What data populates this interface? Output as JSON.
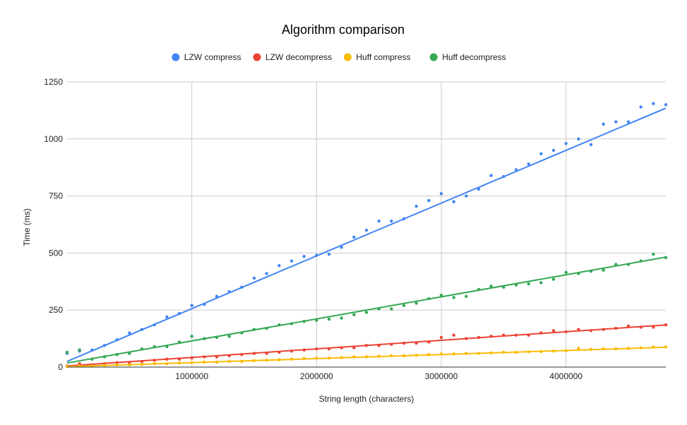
{
  "chart_data": {
    "type": "scatter",
    "title": "Algorithm comparison",
    "xlabel": "String length (characters)",
    "ylabel": "Time (ms)",
    "xlim": [
      0,
      4800000
    ],
    "ylim": [
      0,
      1250
    ],
    "xticks": [
      1000000,
      2000000,
      3000000,
      4000000
    ],
    "xtick_labels": [
      "1000000",
      "2000000",
      "3000000",
      "4000000"
    ],
    "yticks": [
      0,
      250,
      500,
      750,
      1000,
      1250
    ],
    "ytick_labels": [
      "0",
      "250",
      "500",
      "750",
      "1000",
      "1250"
    ],
    "grid": true,
    "legend_position": "top",
    "trendlines": true,
    "series": [
      {
        "name": "LZW compress",
        "color": "#4285F4",
        "x": [
          0,
          100000,
          200000,
          300000,
          400000,
          500000,
          600000,
          700000,
          800000,
          900000,
          1000000,
          1100000,
          1200000,
          1300000,
          1400000,
          1500000,
          1600000,
          1700000,
          1800000,
          1900000,
          2000000,
          2100000,
          2200000,
          2300000,
          2400000,
          2500000,
          2600000,
          2700000,
          2800000,
          2900000,
          3000000,
          3100000,
          3200000,
          3300000,
          3400000,
          3500000,
          3600000,
          3700000,
          3800000,
          3900000,
          4000000,
          4100000,
          4200000,
          4300000,
          4400000,
          4500000,
          4600000,
          4700000,
          4800000
        ],
        "y": [
          60,
          70,
          75,
          95,
          120,
          150,
          165,
          185,
          220,
          235,
          270,
          275,
          310,
          330,
          350,
          390,
          410,
          445,
          465,
          485,
          490,
          495,
          525,
          570,
          600,
          640,
          640,
          650,
          705,
          730,
          760,
          725,
          750,
          780,
          840,
          835,
          865,
          890,
          935,
          950,
          980,
          1000,
          975,
          1065,
          1075,
          1075,
          1140,
          1155,
          1150
        ],
        "trend": [
          25,
          1135
        ]
      },
      {
        "name": "LZW decompress",
        "color": "#EA4335",
        "x": [
          0,
          100000,
          200000,
          300000,
          400000,
          500000,
          600000,
          700000,
          800000,
          900000,
          1000000,
          1100000,
          1200000,
          1300000,
          1400000,
          1500000,
          1600000,
          1700000,
          1800000,
          1900000,
          2000000,
          2100000,
          2200000,
          2300000,
          2400000,
          2500000,
          2600000,
          2700000,
          2800000,
          2900000,
          3000000,
          3100000,
          3200000,
          3300000,
          3400000,
          3500000,
          3600000,
          3700000,
          3800000,
          3900000,
          4000000,
          4100000,
          4200000,
          4300000,
          4400000,
          4500000,
          4600000,
          4700000,
          4800000
        ],
        "y": [
          5,
          15,
          10,
          15,
          20,
          20,
          25,
          30,
          35,
          35,
          40,
          45,
          45,
          50,
          55,
          60,
          60,
          65,
          70,
          75,
          80,
          80,
          85,
          85,
          95,
          95,
          100,
          105,
          105,
          110,
          130,
          140,
          125,
          130,
          135,
          140,
          140,
          140,
          150,
          160,
          155,
          165,
          160,
          165,
          170,
          180,
          175,
          175,
          185
        ],
        "trend": [
          5,
          185
        ]
      },
      {
        "name": "Huff compress",
        "color": "#FBBC04",
        "x": [
          0,
          100000,
          200000,
          300000,
          400000,
          500000,
          600000,
          700000,
          800000,
          900000,
          1000000,
          1100000,
          1200000,
          1300000,
          1400000,
          1500000,
          1600000,
          1700000,
          1800000,
          1900000,
          2000000,
          2100000,
          2200000,
          2300000,
          2400000,
          2500000,
          2600000,
          2700000,
          2800000,
          2900000,
          3000000,
          3100000,
          3200000,
          3300000,
          3400000,
          3500000,
          3600000,
          3700000,
          3800000,
          3900000,
          4000000,
          4100000,
          4200000,
          4300000,
          4400000,
          4500000,
          4600000,
          4700000,
          4800000
        ],
        "y": [
          3,
          5,
          5,
          8,
          10,
          10,
          12,
          15,
          15,
          18,
          20,
          22,
          22,
          25,
          25,
          28,
          30,
          32,
          35,
          38,
          40,
          40,
          42,
          45,
          45,
          48,
          50,
          50,
          52,
          55,
          58,
          58,
          60,
          60,
          62,
          65,
          65,
          68,
          68,
          70,
          72,
          82,
          78,
          80,
          80,
          82,
          85,
          88,
          88
        ],
        "trend": [
          2,
          87
        ]
      },
      {
        "name": "Huff decompress",
        "color": "#34A853",
        "x": [
          0,
          100000,
          200000,
          300000,
          400000,
          500000,
          600000,
          700000,
          800000,
          900000,
          1000000,
          1100000,
          1200000,
          1300000,
          1400000,
          1500000,
          1600000,
          1700000,
          1800000,
          1900000,
          2000000,
          2100000,
          2200000,
          2300000,
          2400000,
          2500000,
          2600000,
          2700000,
          2800000,
          2900000,
          3000000,
          3100000,
          3200000,
          3300000,
          3400000,
          3500000,
          3600000,
          3700000,
          3800000,
          3900000,
          4000000,
          4100000,
          4200000,
          4300000,
          4400000,
          4500000,
          4600000,
          4700000,
          4800000
        ],
        "y": [
          65,
          75,
          35,
          45,
          55,
          60,
          80,
          90,
          90,
          110,
          135,
          125,
          130,
          135,
          150,
          165,
          170,
          185,
          190,
          200,
          205,
          210,
          215,
          230,
          240,
          255,
          255,
          270,
          280,
          300,
          315,
          305,
          310,
          340,
          355,
          350,
          360,
          365,
          370,
          385,
          415,
          410,
          420,
          425,
          450,
          450,
          465,
          495,
          480
        ],
        "trend": [
          18,
          482
        ]
      }
    ]
  }
}
